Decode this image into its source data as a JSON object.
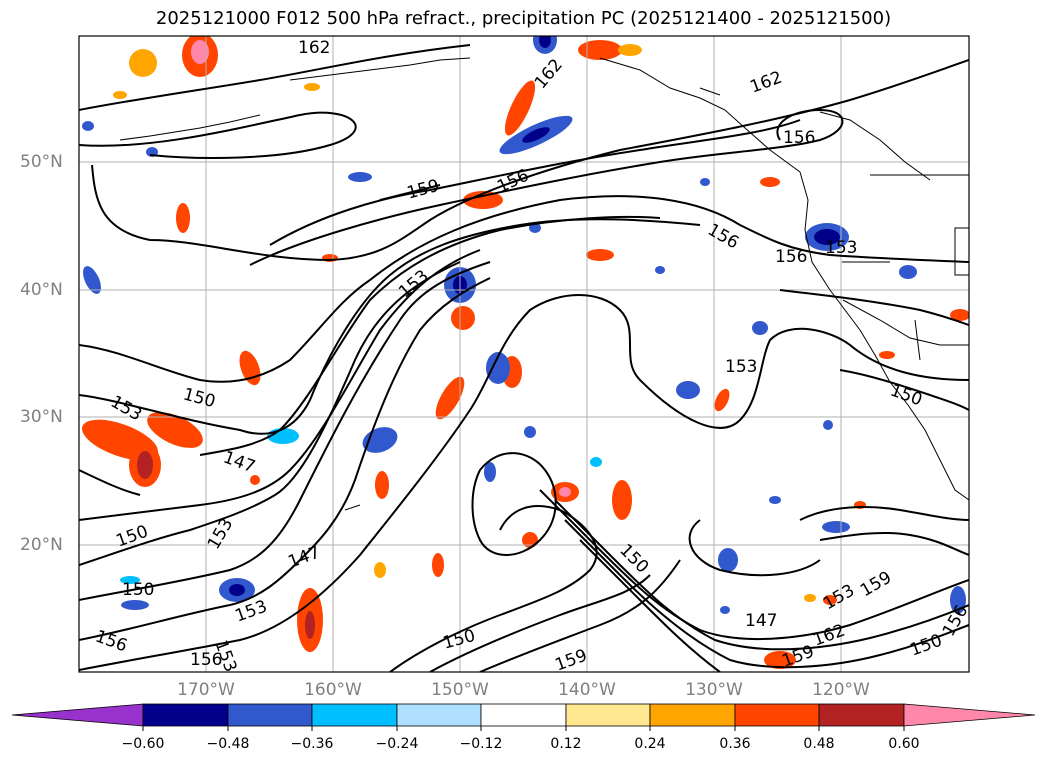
{
  "title": "2025121000 F012 500 hPa refract., precipitation PC (2025121400 - 2025121500)",
  "map": {
    "lat_labels": [
      "50°N",
      "40°N",
      "30°N",
      "20°N"
    ],
    "lon_labels": [
      "170°W",
      "160°W",
      "150°W",
      "140°W",
      "130°W",
      "120°W"
    ],
    "contour_labels": [
      "162",
      "162",
      "162",
      "156",
      "159",
      "156",
      "156",
      "156",
      "153",
      "153",
      "153",
      "150",
      "153",
      "150",
      "147",
      "153",
      "150",
      "147",
      "150",
      "153",
      "156",
      "156",
      "153",
      "150",
      "150",
      "147",
      "162",
      "159",
      "159",
      "150",
      "156",
      "159",
      "153"
    ]
  },
  "colorbar": {
    "tick_labels": [
      "−0.60",
      "−0.48",
      "−0.36",
      "−0.24",
      "−0.12",
      "0.12",
      "0.24",
      "0.36",
      "0.48",
      "0.60"
    ],
    "colors": [
      "#9932cc",
      "#00008b",
      "#3158cc",
      "#00bfff",
      "#b0e0ff",
      "#ffffff",
      "#ffe88f",
      "#ffa500",
      "#ff4500",
      "#b22222",
      "#ff88aa"
    ]
  }
}
